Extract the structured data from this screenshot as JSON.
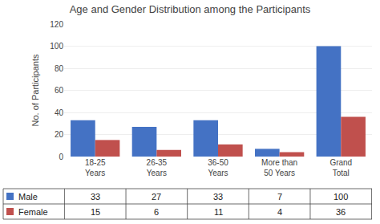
{
  "chart_data": {
    "type": "bar",
    "title": "Age and Gender Distribution among the Participants",
    "categories": [
      "18-25\nYears",
      "26-35\nYears",
      "36-50\nYears",
      "More than\n50 Years",
      "Grand\nTotal"
    ],
    "series": [
      {
        "name": "Male",
        "color": "#4472C4",
        "values": [
          33,
          27,
          33,
          7,
          100
        ]
      },
      {
        "name": "Female",
        "color": "#C0504D",
        "values": [
          15,
          6,
          11,
          4,
          36
        ]
      }
    ],
    "ylabel": "No. of Participants",
    "ylim": [
      0,
      120
    ],
    "yticks": [
      0,
      20,
      40,
      60,
      80,
      100,
      120
    ],
    "grid": true
  }
}
